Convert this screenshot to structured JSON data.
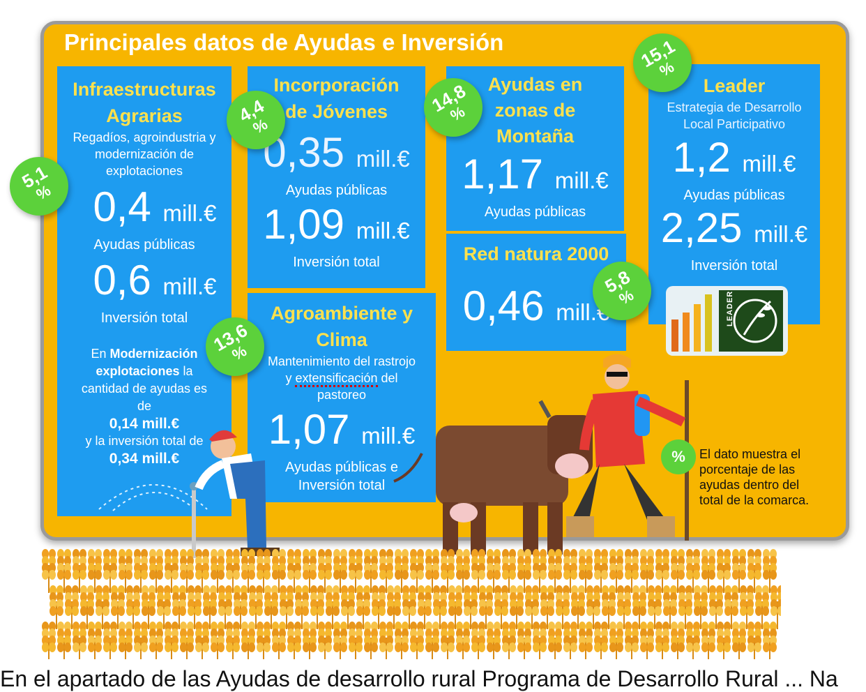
{
  "title": "Principales datos de Ayudas e Inversión",
  "panels": {
    "infra": {
      "title1": "Infraestructuras",
      "title2": "Agrarias",
      "sub1": "Regadíos, agroindustria y",
      "sub2": "modernización de",
      "sub3": "explotaciones",
      "val1": "0,4",
      "unit": "mill.€",
      "lbl1": "Ayudas públicas",
      "val2": "0,6",
      "lbl2": "Inversión total",
      "note1a": "En ",
      "note1b": "Modernización",
      "note2a": "explotaciones",
      "note2b": " la",
      "note3": "cantidad de ayudas es",
      "note4": "de",
      "note5": "0,14 mill.€",
      "note6": "y la inversión total de",
      "note7": "0,34 mill.€",
      "badge": "5,1"
    },
    "jovenes": {
      "title1": "Incorporación",
      "title2": "de Jóvenes",
      "val1": "0,35",
      "unit": "mill.€",
      "lbl1": "Ayudas públicas",
      "val2": "1,09",
      "lbl2": "Inversión total",
      "badge": "4,4"
    },
    "montana": {
      "title1": "Ayudas en",
      "title2": "zonas de",
      "title3": "Montaña",
      "val1": "1,17",
      "unit": "mill.€",
      "lbl1": "Ayudas públicas",
      "badge": "14,8"
    },
    "natura": {
      "title": "Red natura 2000",
      "val1": "0,46",
      "unit": "mill.€",
      "badge": "5,8"
    },
    "agro": {
      "title1": "Agroambiente y",
      "title2": "Clima",
      "sub1": "Mantenimiento del rastrojo",
      "sub2a": "y  ",
      "sub2b": "extensificación",
      "sub2c": " del",
      "sub3": "pastoreo",
      "val1": "1,07",
      "unit": "mill.€",
      "lbl1": "Ayudas públicas e",
      "lbl2": "Inversión total",
      "badge": "13,6"
    },
    "leader": {
      "title": "Leader",
      "sub1": "Estrategia de Desarrollo",
      "sub2": "Local Participativo",
      "val1": "1,2",
      "unit": "mill.€",
      "lbl1": "Ayudas públicas",
      "val2": "2,25",
      "lbl2": "Inversión total",
      "badge": "15,1",
      "logo_text": "LEADER"
    }
  },
  "pct_symbol": "%",
  "legend": {
    "symbol": "%",
    "line1": "El dato muestra el",
    "line2": "porcentaje de las",
    "line3": "ayudas dentro del",
    "line4": "total de la comarca."
  },
  "footer": "En el apartado de las Ayudas de desarrollo rural Programa de Desarrollo Rural ... Na",
  "colors": {
    "board": "#f7b500",
    "panel": "#1e9cf0",
    "title_yellow": "#ffe14d",
    "badge_green": "#5cd13b"
  }
}
